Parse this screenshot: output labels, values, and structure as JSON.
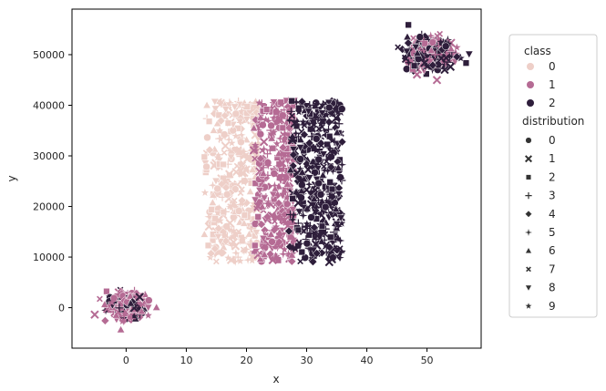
{
  "chart_data": {
    "type": "scatter",
    "title": "",
    "xlabel": "x",
    "ylabel": "y",
    "xlim": [
      -9,
      59
    ],
    "ylim": [
      -8000,
      59000
    ],
    "x_ticks": [
      0,
      10,
      20,
      30,
      40,
      50
    ],
    "y_ticks": [
      0,
      10000,
      20000,
      30000,
      40000,
      50000
    ],
    "x_tick_labels": [
      "0",
      "10",
      "20",
      "30",
      "40",
      "50"
    ],
    "y_tick_labels": [
      "0",
      "10000",
      "20000",
      "30000",
      "40000",
      "50000"
    ],
    "grid": false,
    "legend_placement": "right outside",
    "class_colors": [
      "#eecfc8",
      "#b56b94",
      "#2e1e3b"
    ],
    "legend": {
      "class_title": "class",
      "class_labels": [
        "0",
        "1",
        "2"
      ],
      "distribution_title": "distribution",
      "distribution_labels": [
        "0",
        "1",
        "2",
        "3",
        "4",
        "5",
        "6",
        "7",
        "8",
        "9"
      ],
      "distribution_markers": [
        "circle",
        "x",
        "square",
        "plus",
        "diamond",
        "star4",
        "triangle-up",
        "x-small",
        "triangle-down",
        "star"
      ]
    },
    "clusters": [
      {
        "name": "bottom-left",
        "class_mix": [
          1,
          1,
          2
        ],
        "center": [
          0,
          500
        ],
        "spread": [
          2.8,
          2200
        ],
        "shape": "ellipse",
        "n": 380
      },
      {
        "name": "middle-class-0",
        "class_mix": [
          0
        ],
        "x_range": [
          13,
          22
        ],
        "y_range": [
          9000,
          41000
        ],
        "shape": "band",
        "n": 360
      },
      {
        "name": "middle-class-1",
        "class_mix": [
          1
        ],
        "x_range": [
          21,
          28
        ],
        "y_range": [
          9000,
          41000
        ],
        "shape": "band",
        "n": 360
      },
      {
        "name": "middle-class-2",
        "class_mix": [
          2
        ],
        "x_range": [
          27,
          36
        ],
        "y_range": [
          9000,
          41000
        ],
        "shape": "band",
        "n": 420
      },
      {
        "name": "top-right",
        "class_mix": [
          1,
          2,
          2
        ],
        "center": [
          50.5,
          50000
        ],
        "spread": [
          3.3,
          3000
        ],
        "shape": "ellipse",
        "n": 380
      }
    ]
  }
}
